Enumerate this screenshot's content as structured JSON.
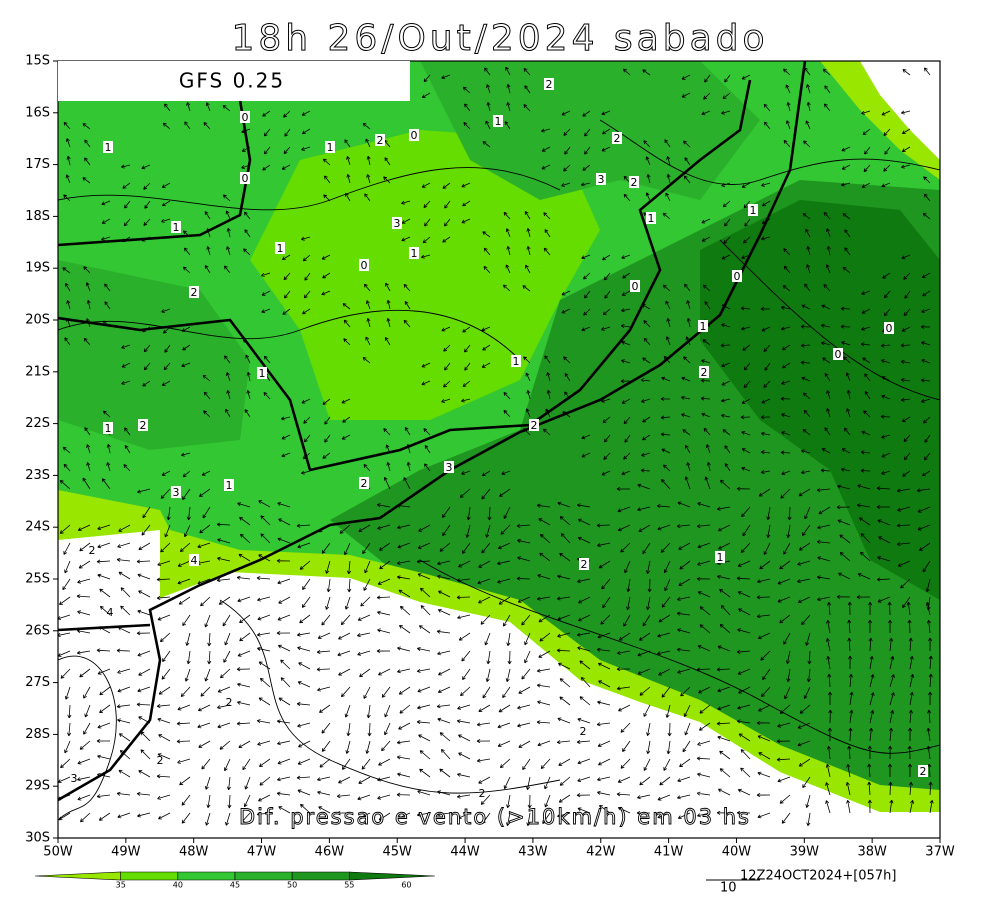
{
  "header": {
    "title": "18h 26/Out/2024 sabado",
    "model": "GFS 0.25"
  },
  "axes": {
    "lat": [
      "15S",
      "16S",
      "17S",
      "18S",
      "19S",
      "20S",
      "21S",
      "22S",
      "23S",
      "24S",
      "25S",
      "26S",
      "27S",
      "28S",
      "29S",
      "30S"
    ],
    "lon": [
      "50W",
      "49W",
      "48W",
      "47W",
      "46W",
      "45W",
      "44W",
      "43W",
      "42W",
      "41W",
      "40W",
      "39W",
      "38W",
      "37W"
    ]
  },
  "caption": "Dif. pressao e vento (>10km/h) em 03 hs",
  "colorbar": {
    "labels": [
      "35",
      "40",
      "45",
      "50",
      "55",
      "60"
    ],
    "colors": [
      "#99e600",
      "#66dd00",
      "#33c733",
      "#2bb02b",
      "#1f961f",
      "#0f7a0f"
    ]
  },
  "vector_scale": {
    "label": "10"
  },
  "run_info": "12Z24OCT2024+[057h]",
  "contour_labels": [
    "0",
    "0",
    "1",
    "1",
    "2",
    "0",
    "1",
    "2",
    "2",
    "3",
    "2",
    "1",
    "1",
    "1",
    "1",
    "3",
    "0",
    "1",
    "2",
    "0",
    "0",
    "1",
    "0",
    "0",
    "1",
    "2",
    "1",
    "1",
    "2",
    "2",
    "3",
    "2",
    "1",
    "3",
    "2",
    "1",
    "4",
    "2",
    "2",
    "4",
    "2",
    "2",
    "3",
    "2",
    "2"
  ]
}
